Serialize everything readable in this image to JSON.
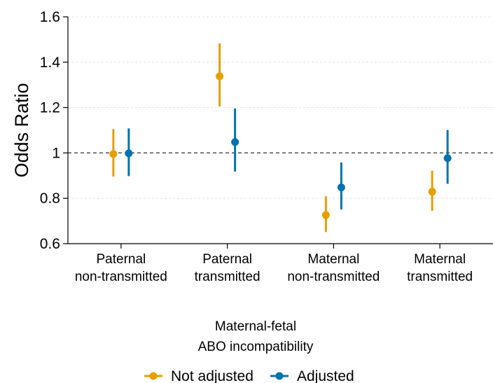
{
  "chart_data": {
    "type": "scatter",
    "ylabel": "Odds Ratio",
    "xlabel_lines": [
      "Maternal-fetal",
      "ABO incompatibility"
    ],
    "ylim": [
      0.6,
      1.6
    ],
    "y_ticks": [
      0.6,
      0.8,
      1,
      1.2,
      1.4,
      1.6
    ],
    "y_tick_labels": [
      "0.6",
      "0.8",
      "1",
      "1.2",
      "1.4",
      "1.6"
    ],
    "reference_line": 1,
    "grid": true,
    "legend_position": "bottom",
    "categories": [
      [
        "Paternal",
        "non-transmitted"
      ],
      [
        "Paternal",
        "transmitted"
      ],
      [
        "Maternal",
        "non-transmitted"
      ],
      [
        "Maternal",
        "transmitted"
      ]
    ],
    "series": [
      {
        "name": "Not adjusted",
        "color": "#E69F00",
        "values": [
          0.995,
          1.338,
          0.726,
          0.829
        ],
        "lower": [
          0.896,
          1.205,
          0.651,
          0.745
        ],
        "upper": [
          1.105,
          1.483,
          0.809,
          0.922
        ]
      },
      {
        "name": "Adjusted",
        "color": "#0072B2",
        "values": [
          0.998,
          1.048,
          0.848,
          0.977
        ],
        "lower": [
          0.898,
          0.918,
          0.751,
          0.864
        ],
        "upper": [
          1.108,
          1.196,
          0.958,
          1.101
        ]
      }
    ]
  }
}
